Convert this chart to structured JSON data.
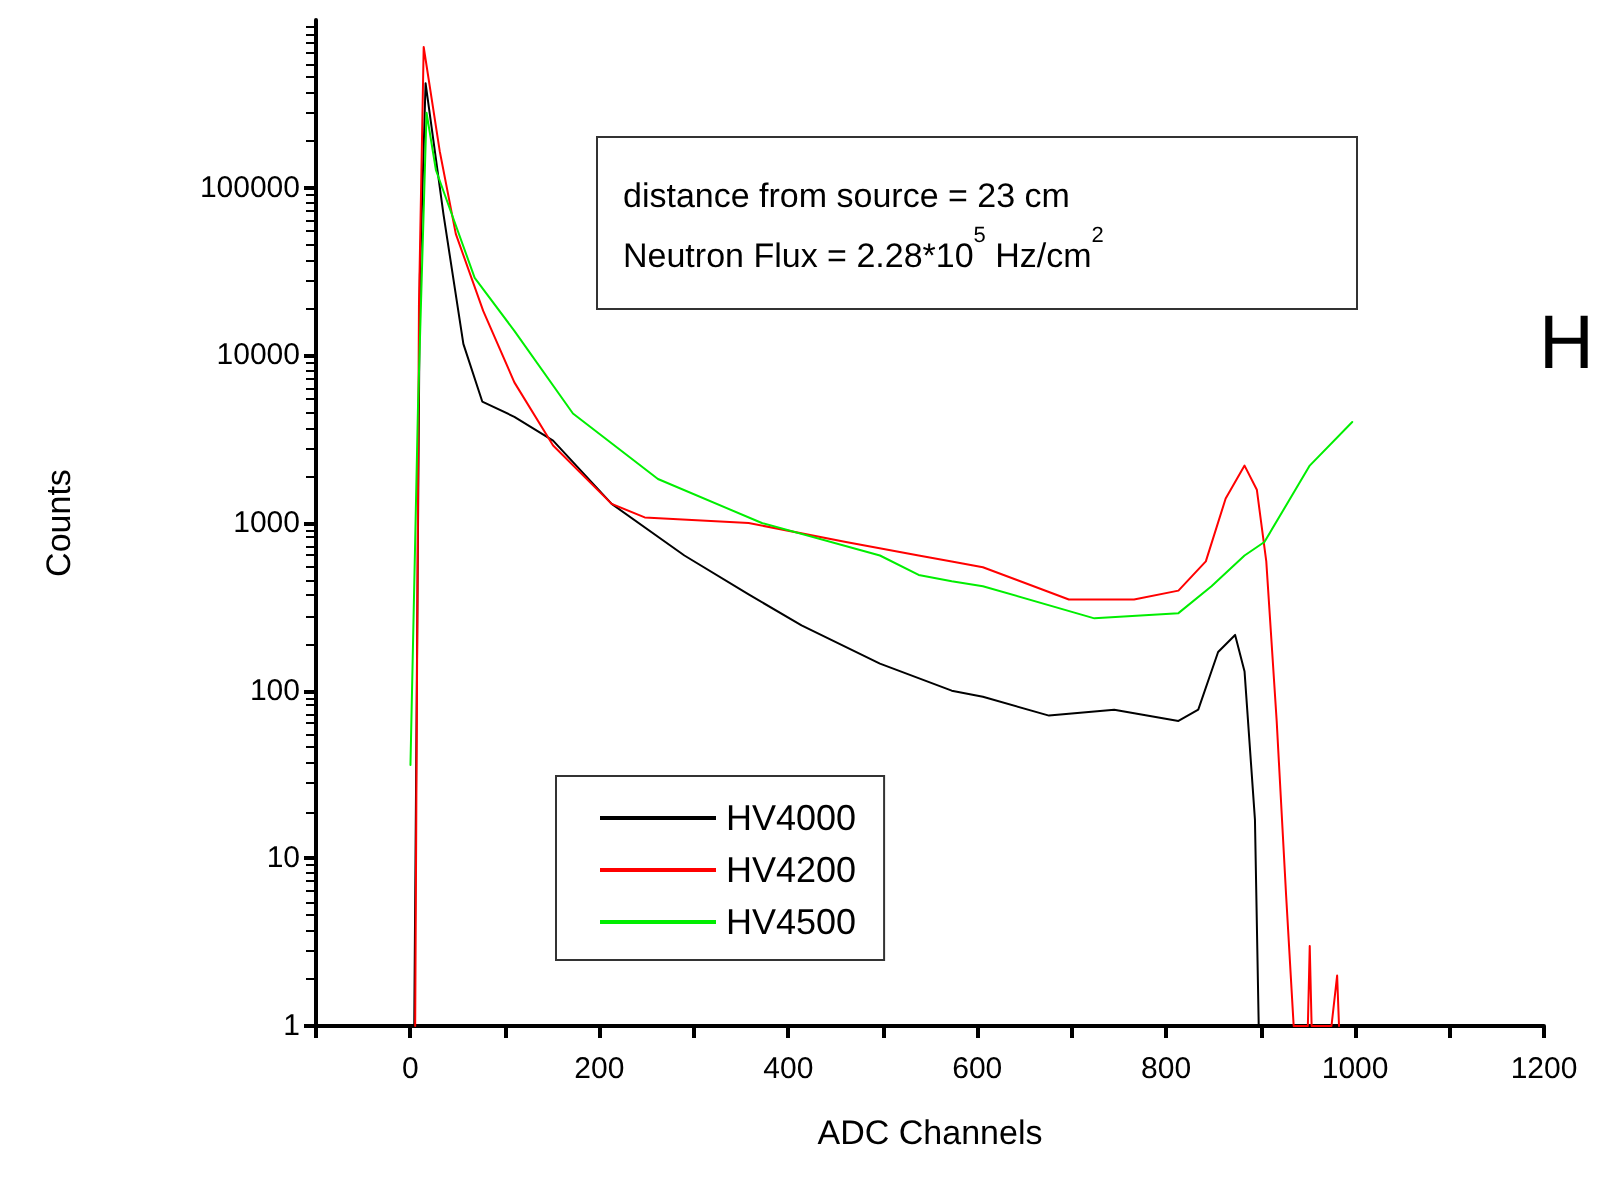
{
  "chart_data": {
    "type": "line",
    "xlabel": "ADC Channels",
    "ylabel": "Counts",
    "log": "y",
    "xlim": [
      -100,
      1200
    ],
    "xticks": [
      {
        "value": -100,
        "label": null
      },
      0,
      {
        "value": 100,
        "label": null
      },
      200,
      {
        "value": 300,
        "label": null
      },
      400,
      {
        "value": 500,
        "label": null
      },
      600,
      {
        "value": 700,
        "label": null
      },
      800,
      {
        "value": 900,
        "label": null
      },
      1000,
      {
        "value": 1100,
        "label": null
      },
      1200
    ],
    "ylim": [
      1,
      1000000
    ],
    "yticks": [
      1,
      10,
      100,
      1000,
      10000,
      100000
    ],
    "grid": false,
    "legend": "bottom left",
    "marker": "none",
    "line_style": "solid",
    "annotations": [
      "distance from source = 23 cm",
      "Neutron Flux = 2.28*10$^{5}$ Hz/cm$^{2}$",
      "H"
    ],
    "series": [
      {
        "name": "HV4000",
        "color": "#000000",
        "x": [
          4,
          10,
          16,
          35,
          56,
          76,
          110,
          151,
          213,
          290,
          358,
          414,
          497,
          573,
          606,
          676,
          745,
          813,
          834,
          855,
          873,
          883,
          894,
          898
        ],
        "values": [
          1,
          30000,
          420000,
          69000,
          11700,
          5300,
          4300,
          3100,
          1300,
          640,
          375,
          245,
          145,
          100,
          92,
          71,
          77,
          66,
          77,
          170,
          215,
          130,
          17,
          1
        ]
      },
      {
        "name": "HV4200",
        "color": "#ff0000",
        "x": [
          5,
          9,
          14,
          31,
          48,
          77,
          110,
          151,
          213,
          248,
          358,
          461,
          538,
          573,
          606,
          697,
          766,
          813,
          842,
          863,
          883,
          896,
          906,
          917,
          927,
          935,
          950,
          952,
          954,
          975,
          981,
          983
        ],
        "values": [
          1,
          20000,
          690000,
          165000,
          53000,
          18400,
          6900,
          2900,
          1300,
          1080,
          1000,
          770,
          640,
          590,
          545,
          350,
          350,
          395,
          590,
          1400,
          2200,
          1580,
          590,
          66,
          6,
          1,
          1,
          3,
          1,
          1,
          2,
          1
        ]
      },
      {
        "name": "HV4500",
        "color": "#00ee00",
        "x": [
          0,
          8,
          17,
          27,
          68,
          110,
          172,
          262,
          372,
          497,
          538,
          573,
          606,
          724,
          813,
          848,
          883,
          904,
          952,
          997
        ],
        "values": [
          36,
          5000,
          280000,
          127000,
          29000,
          14000,
          4500,
          1830,
          1000,
          640,
          490,
          450,
          420,
          270,
          290,
          420,
          640,
          770,
          2200,
          4000
        ]
      }
    ]
  }
}
